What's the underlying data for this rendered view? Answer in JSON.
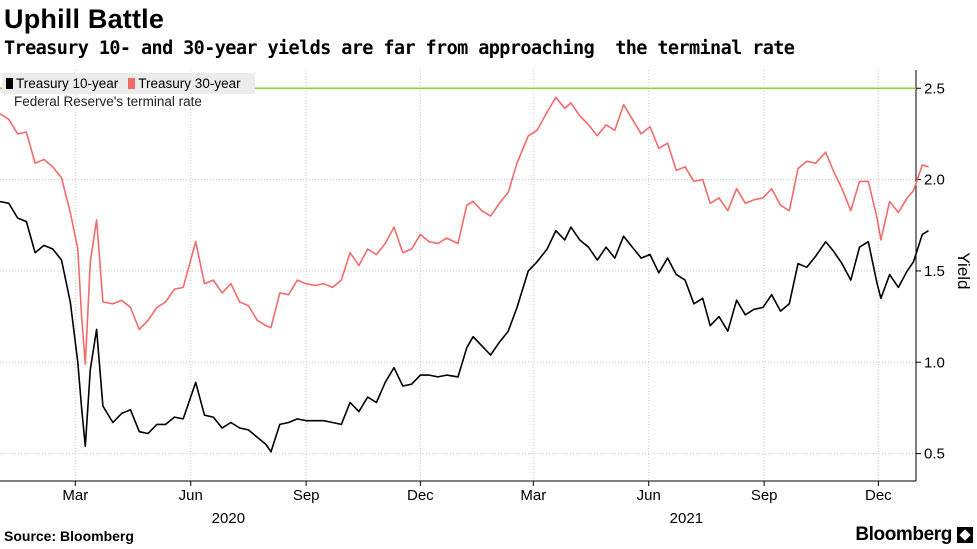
{
  "title": "Uphill Battle",
  "subtitle": "Treasury 10- and 30-year yields are far from approaching  the terminal rate",
  "source": "Source: Bloomberg",
  "logo": "Bloomberg",
  "reference_label": "Federal Reserve's terminal rate",
  "colors": {
    "series_10y": "#000000",
    "series_30y": "#f26b6b",
    "reference": "#8dd13c",
    "grid": "#c8c8c8"
  },
  "chart_data": {
    "type": "line",
    "ylabel": "Yield",
    "ylim": [
      0.35,
      2.6
    ],
    "yticks": [
      0.5,
      1.0,
      1.5,
      2.0,
      2.5
    ],
    "ytick_labels": [
      "0.5",
      "1.0",
      "1.5",
      "2.0",
      "2.5"
    ],
    "xlim": [
      "2020-01-01",
      "2021-12-31"
    ],
    "xticks": [
      "2020-03-01",
      "2020-06-01",
      "2020-09-01",
      "2020-12-01",
      "2021-03-01",
      "2021-06-01",
      "2021-09-01",
      "2021-12-01"
    ],
    "xtick_labels": [
      "Mar",
      "Jun",
      "Sep",
      "Dec",
      "Mar",
      "Jun",
      "Sep",
      "Dec"
    ],
    "year_labels": [
      {
        "label": "2020",
        "date": "2020-07-01"
      },
      {
        "label": "2021",
        "date": "2021-07-01"
      }
    ],
    "grid": true,
    "legend_position": "top-left",
    "reference_line": {
      "name": "Federal Reserve's terminal rate",
      "y": 2.5
    },
    "series": [
      {
        "name": "Treasury 10-year",
        "points": [
          [
            "2020-01-01",
            1.88
          ],
          [
            "2020-01-08",
            1.87
          ],
          [
            "2020-01-15",
            1.79
          ],
          [
            "2020-01-22",
            1.77
          ],
          [
            "2020-01-29",
            1.6
          ],
          [
            "2020-02-05",
            1.64
          ],
          [
            "2020-02-12",
            1.62
          ],
          [
            "2020-02-19",
            1.56
          ],
          [
            "2020-02-26",
            1.33
          ],
          [
            "2020-03-03",
            1.0
          ],
          [
            "2020-03-06",
            0.75
          ],
          [
            "2020-03-09",
            0.54
          ],
          [
            "2020-03-13",
            0.96
          ],
          [
            "2020-03-18",
            1.18
          ],
          [
            "2020-03-23",
            0.76
          ],
          [
            "2020-03-31",
            0.67
          ],
          [
            "2020-04-07",
            0.72
          ],
          [
            "2020-04-14",
            0.74
          ],
          [
            "2020-04-21",
            0.62
          ],
          [
            "2020-04-28",
            0.61
          ],
          [
            "2020-05-05",
            0.66
          ],
          [
            "2020-05-12",
            0.66
          ],
          [
            "2020-05-19",
            0.7
          ],
          [
            "2020-05-26",
            0.69
          ],
          [
            "2020-06-05",
            0.89
          ],
          [
            "2020-06-12",
            0.71
          ],
          [
            "2020-06-19",
            0.7
          ],
          [
            "2020-06-26",
            0.64
          ],
          [
            "2020-07-03",
            0.67
          ],
          [
            "2020-07-10",
            0.64
          ],
          [
            "2020-07-17",
            0.63
          ],
          [
            "2020-07-24",
            0.59
          ],
          [
            "2020-07-31",
            0.55
          ],
          [
            "2020-08-04",
            0.51
          ],
          [
            "2020-08-11",
            0.66
          ],
          [
            "2020-08-18",
            0.67
          ],
          [
            "2020-08-25",
            0.69
          ],
          [
            "2020-09-01",
            0.68
          ],
          [
            "2020-09-08",
            0.68
          ],
          [
            "2020-09-15",
            0.68
          ],
          [
            "2020-09-22",
            0.67
          ],
          [
            "2020-09-29",
            0.66
          ],
          [
            "2020-10-06",
            0.78
          ],
          [
            "2020-10-13",
            0.73
          ],
          [
            "2020-10-20",
            0.81
          ],
          [
            "2020-10-27",
            0.78
          ],
          [
            "2020-11-03",
            0.89
          ],
          [
            "2020-11-10",
            0.97
          ],
          [
            "2020-11-17",
            0.87
          ],
          [
            "2020-11-24",
            0.88
          ],
          [
            "2020-12-01",
            0.93
          ],
          [
            "2020-12-08",
            0.93
          ],
          [
            "2020-12-15",
            0.92
          ],
          [
            "2020-12-22",
            0.93
          ],
          [
            "2020-12-31",
            0.92
          ],
          [
            "2021-01-07",
            1.08
          ],
          [
            "2021-01-12",
            1.14
          ],
          [
            "2021-01-19",
            1.09
          ],
          [
            "2021-01-26",
            1.04
          ],
          [
            "2021-02-02",
            1.11
          ],
          [
            "2021-02-09",
            1.17
          ],
          [
            "2021-02-16",
            1.3
          ],
          [
            "2021-02-25",
            1.5
          ],
          [
            "2021-03-04",
            1.55
          ],
          [
            "2021-03-12",
            1.62
          ],
          [
            "2021-03-19",
            1.72
          ],
          [
            "2021-03-26",
            1.67
          ],
          [
            "2021-03-31",
            1.74
          ],
          [
            "2021-04-07",
            1.67
          ],
          [
            "2021-04-14",
            1.63
          ],
          [
            "2021-04-21",
            1.56
          ],
          [
            "2021-04-28",
            1.63
          ],
          [
            "2021-05-05",
            1.57
          ],
          [
            "2021-05-12",
            1.69
          ],
          [
            "2021-05-19",
            1.63
          ],
          [
            "2021-05-26",
            1.57
          ],
          [
            "2021-06-02",
            1.59
          ],
          [
            "2021-06-09",
            1.49
          ],
          [
            "2021-06-16",
            1.57
          ],
          [
            "2021-06-23",
            1.48
          ],
          [
            "2021-06-30",
            1.45
          ],
          [
            "2021-07-07",
            1.32
          ],
          [
            "2021-07-14",
            1.35
          ],
          [
            "2021-07-20",
            1.2
          ],
          [
            "2021-07-27",
            1.25
          ],
          [
            "2021-08-03",
            1.17
          ],
          [
            "2021-08-10",
            1.34
          ],
          [
            "2021-08-17",
            1.26
          ],
          [
            "2021-08-24",
            1.29
          ],
          [
            "2021-08-31",
            1.3
          ],
          [
            "2021-09-07",
            1.37
          ],
          [
            "2021-09-14",
            1.28
          ],
          [
            "2021-09-21",
            1.32
          ],
          [
            "2021-09-28",
            1.54
          ],
          [
            "2021-10-05",
            1.52
          ],
          [
            "2021-10-12",
            1.58
          ],
          [
            "2021-10-20",
            1.66
          ],
          [
            "2021-10-26",
            1.61
          ],
          [
            "2021-11-02",
            1.54
          ],
          [
            "2021-11-09",
            1.45
          ],
          [
            "2021-11-16",
            1.63
          ],
          [
            "2021-11-23",
            1.66
          ],
          [
            "2021-11-30",
            1.43
          ],
          [
            "2021-12-03",
            1.35
          ],
          [
            "2021-12-10",
            1.48
          ],
          [
            "2021-12-17",
            1.41
          ],
          [
            "2021-12-24",
            1.5
          ],
          [
            "2021-12-29",
            1.55
          ],
          [
            "2022-01-05",
            1.7
          ],
          [
            "2022-01-10",
            1.72
          ]
        ]
      },
      {
        "name": "Treasury 30-year",
        "points": [
          [
            "2020-01-01",
            2.36
          ],
          [
            "2020-01-08",
            2.33
          ],
          [
            "2020-01-15",
            2.25
          ],
          [
            "2020-01-22",
            2.26
          ],
          [
            "2020-01-29",
            2.09
          ],
          [
            "2020-02-05",
            2.11
          ],
          [
            "2020-02-12",
            2.07
          ],
          [
            "2020-02-19",
            2.01
          ],
          [
            "2020-02-26",
            1.82
          ],
          [
            "2020-03-03",
            1.62
          ],
          [
            "2020-03-06",
            1.25
          ],
          [
            "2020-03-09",
            0.99
          ],
          [
            "2020-03-13",
            1.55
          ],
          [
            "2020-03-18",
            1.78
          ],
          [
            "2020-03-23",
            1.33
          ],
          [
            "2020-03-31",
            1.32
          ],
          [
            "2020-04-07",
            1.34
          ],
          [
            "2020-04-14",
            1.3
          ],
          [
            "2020-04-21",
            1.18
          ],
          [
            "2020-04-28",
            1.23
          ],
          [
            "2020-05-05",
            1.3
          ],
          [
            "2020-05-12",
            1.33
          ],
          [
            "2020-05-19",
            1.4
          ],
          [
            "2020-05-26",
            1.41
          ],
          [
            "2020-06-05",
            1.66
          ],
          [
            "2020-06-12",
            1.43
          ],
          [
            "2020-06-19",
            1.45
          ],
          [
            "2020-06-26",
            1.38
          ],
          [
            "2020-07-03",
            1.43
          ],
          [
            "2020-07-10",
            1.33
          ],
          [
            "2020-07-17",
            1.31
          ],
          [
            "2020-07-24",
            1.23
          ],
          [
            "2020-07-31",
            1.2
          ],
          [
            "2020-08-04",
            1.19
          ],
          [
            "2020-08-11",
            1.38
          ],
          [
            "2020-08-18",
            1.37
          ],
          [
            "2020-08-25",
            1.45
          ],
          [
            "2020-09-01",
            1.43
          ],
          [
            "2020-09-08",
            1.42
          ],
          [
            "2020-09-15",
            1.43
          ],
          [
            "2020-09-22",
            1.41
          ],
          [
            "2020-09-29",
            1.45
          ],
          [
            "2020-10-06",
            1.6
          ],
          [
            "2020-10-13",
            1.53
          ],
          [
            "2020-10-20",
            1.62
          ],
          [
            "2020-10-27",
            1.59
          ],
          [
            "2020-11-03",
            1.65
          ],
          [
            "2020-11-10",
            1.74
          ],
          [
            "2020-11-17",
            1.6
          ],
          [
            "2020-11-24",
            1.62
          ],
          [
            "2020-12-01",
            1.7
          ],
          [
            "2020-12-08",
            1.66
          ],
          [
            "2020-12-15",
            1.65
          ],
          [
            "2020-12-22",
            1.68
          ],
          [
            "2020-12-31",
            1.65
          ],
          [
            "2021-01-07",
            1.86
          ],
          [
            "2021-01-12",
            1.88
          ],
          [
            "2021-01-19",
            1.83
          ],
          [
            "2021-01-26",
            1.8
          ],
          [
            "2021-02-02",
            1.87
          ],
          [
            "2021-02-09",
            1.93
          ],
          [
            "2021-02-16",
            2.09
          ],
          [
            "2021-02-25",
            2.24
          ],
          [
            "2021-03-04",
            2.27
          ],
          [
            "2021-03-12",
            2.37
          ],
          [
            "2021-03-19",
            2.45
          ],
          [
            "2021-03-26",
            2.39
          ],
          [
            "2021-03-31",
            2.42
          ],
          [
            "2021-04-07",
            2.35
          ],
          [
            "2021-04-14",
            2.3
          ],
          [
            "2021-04-21",
            2.24
          ],
          [
            "2021-04-28",
            2.3
          ],
          [
            "2021-05-05",
            2.27
          ],
          [
            "2021-05-12",
            2.41
          ],
          [
            "2021-05-19",
            2.33
          ],
          [
            "2021-05-26",
            2.25
          ],
          [
            "2021-06-02",
            2.29
          ],
          [
            "2021-06-09",
            2.17
          ],
          [
            "2021-06-16",
            2.2
          ],
          [
            "2021-06-23",
            2.05
          ],
          [
            "2021-06-30",
            2.07
          ],
          [
            "2021-07-07",
            1.99
          ],
          [
            "2021-07-14",
            2.0
          ],
          [
            "2021-07-20",
            1.87
          ],
          [
            "2021-07-27",
            1.9
          ],
          [
            "2021-08-03",
            1.83
          ],
          [
            "2021-08-10",
            1.95
          ],
          [
            "2021-08-17",
            1.87
          ],
          [
            "2021-08-24",
            1.89
          ],
          [
            "2021-08-31",
            1.9
          ],
          [
            "2021-09-07",
            1.95
          ],
          [
            "2021-09-14",
            1.86
          ],
          [
            "2021-09-21",
            1.83
          ],
          [
            "2021-09-28",
            2.06
          ],
          [
            "2021-10-05",
            2.1
          ],
          [
            "2021-10-12",
            2.09
          ],
          [
            "2021-10-20",
            2.15
          ],
          [
            "2021-10-26",
            2.05
          ],
          [
            "2021-11-02",
            1.95
          ],
          [
            "2021-11-09",
            1.83
          ],
          [
            "2021-11-16",
            1.99
          ],
          [
            "2021-11-23",
            1.99
          ],
          [
            "2021-11-30",
            1.79
          ],
          [
            "2021-12-03",
            1.67
          ],
          [
            "2021-12-10",
            1.88
          ],
          [
            "2021-12-17",
            1.82
          ],
          [
            "2021-12-24",
            1.9
          ],
          [
            "2021-12-29",
            1.94
          ],
          [
            "2022-01-05",
            2.08
          ],
          [
            "2022-01-10",
            2.07
          ]
        ]
      }
    ]
  }
}
